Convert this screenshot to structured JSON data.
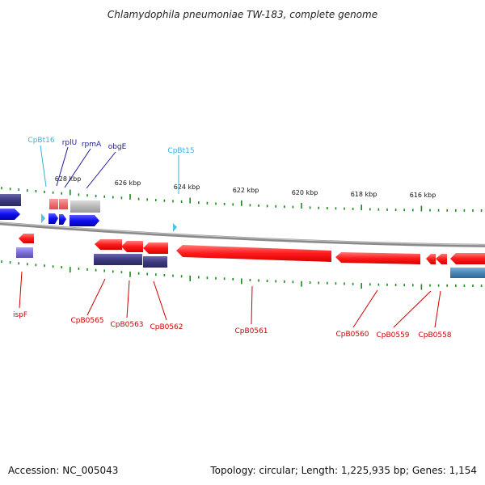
{
  "title": "Chlamydophila pneumoniae TW-183, complete genome",
  "footer": {
    "accession": "Accession: NC_005043",
    "summary": "Topology: circular; Length: 1,225,935 bp; Genes: 1,154"
  },
  "ruler_labels": [
    "628 kbp",
    "626 kbp",
    "624 kbp",
    "622 kbp",
    "620 kbp",
    "618 kbp",
    "616 kbp"
  ],
  "colors": {
    "tick_green": "#1a8a1a",
    "backbone": "#8a8a8a",
    "gene_red": "#ff1a1a",
    "gene_blue": "#1010ee",
    "gene_navy": "#3c3a80",
    "gene_lavender": "#7a6fd6",
    "gene_pink": "#f07070",
    "gene_gray": "#b8b8b8",
    "gene_steel": "#4a86b8",
    "trna_cyan": "#4fc3e6",
    "label_red": "#cc0000",
    "label_navy": "#1a1a99",
    "label_cyan": "#36b0dd"
  },
  "labels": {
    "CpBt16": "CpBt16",
    "rplU": "rplU",
    "rpmA": "rpmA",
    "obgE": "obgE",
    "CpBt15": "CpBt15",
    "ispF": "ispF",
    "CpB0565": "CpB0565",
    "CpB0563": "CpB0563",
    "CpB0562": "CpB0562",
    "CpB0561": "CpB0561",
    "CpB0560": "CpB0560",
    "CpB0559": "CpB0559",
    "CpB0558": "CpB0558"
  }
}
